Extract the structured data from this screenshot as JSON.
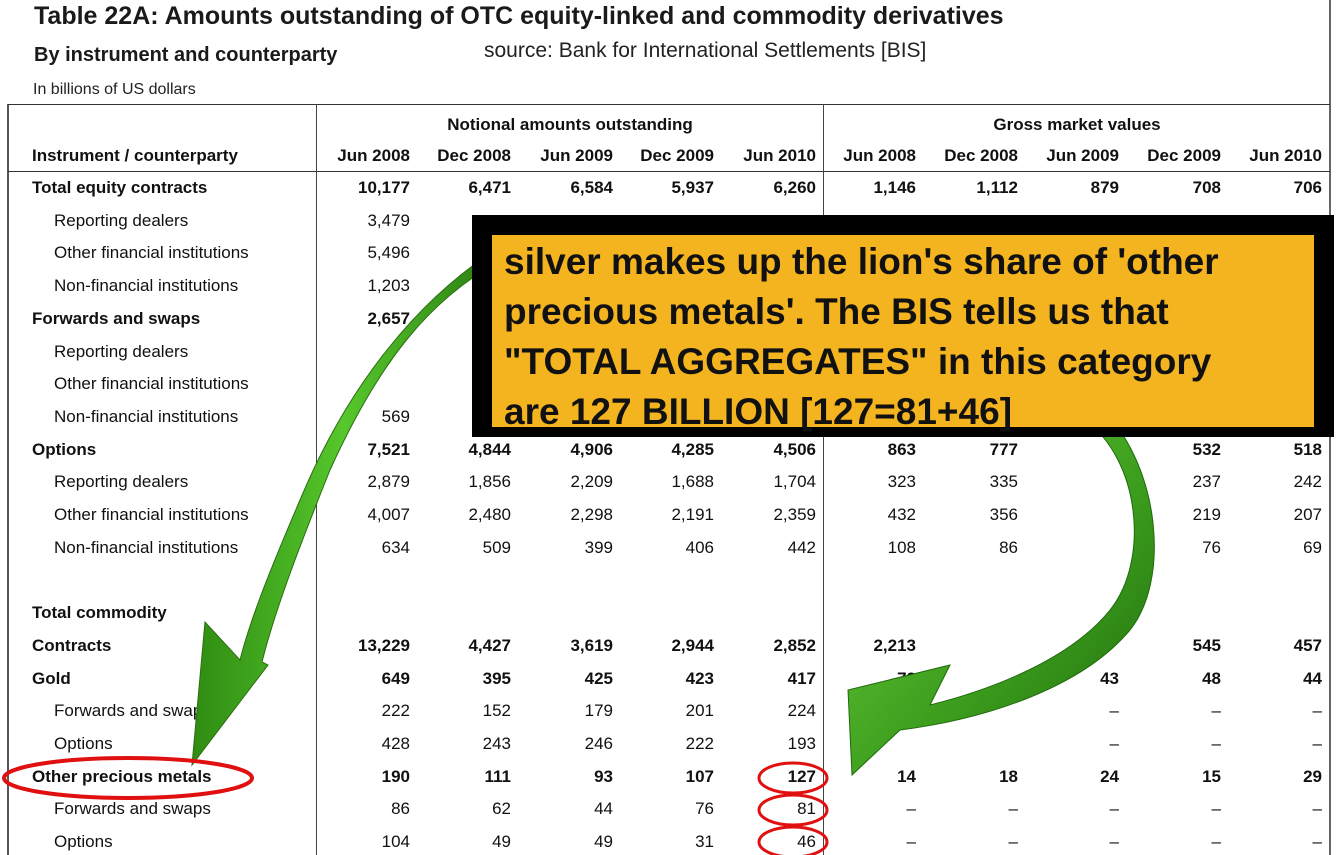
{
  "header": {
    "title": "Table 22A: Amounts outstanding of OTC equity-linked and commodity derivatives",
    "subtitle": "By instrument and counterparty",
    "source": "source:  Bank for International Settlements [BIS]",
    "units": "In billions of US dollars"
  },
  "table": {
    "label_header": "Instrument / counterparty",
    "group_notional": "Notional amounts outstanding",
    "group_gross": "Gross market values",
    "columns": [
      "Jun 2008",
      "Dec 2008",
      "Jun 2009",
      "Dec 2009",
      "Jun 2010",
      "Jun 2008",
      "Dec 2008",
      "Jun 2009",
      "Dec 2009",
      "Jun 2010"
    ],
    "rows": [
      {
        "label": "Total equity contracts",
        "style": "bold",
        "values": [
          "10,177",
          "6,471",
          "6,584",
          "5,937",
          "6,260",
          "1,146",
          "1,112",
          "879",
          "708",
          "706"
        ]
      },
      {
        "label": "Reporting dealers",
        "style": "indent",
        "values": [
          "3,479",
          "",
          "",
          "",
          "",
          "",
          "",
          "",
          "",
          ""
        ]
      },
      {
        "label": "Other financial institutions",
        "style": "indent",
        "values": [
          "5,496",
          "",
          "",
          "",
          "",
          "",
          "",
          "",
          "",
          ""
        ]
      },
      {
        "label": "Non-financial institutions",
        "style": "indent",
        "values": [
          "1,203",
          "",
          "",
          "",
          "",
          "",
          "",
          "",
          "",
          ""
        ]
      },
      {
        "label": "Forwards and swaps",
        "style": "bold",
        "values": [
          "2,657",
          "",
          "",
          "",
          "",
          "",
          "",
          "",
          "",
          ""
        ]
      },
      {
        "label": "Reporting dealers",
        "style": "indent",
        "values": [
          "",
          "",
          "",
          "",
          "",
          "",
          "",
          "",
          "",
          ""
        ]
      },
      {
        "label": "Other financial institutions",
        "style": "indent",
        "values": [
          "",
          "",
          "",
          "",
          "",
          "",
          "",
          "",
          "",
          ""
        ]
      },
      {
        "label": "Non-financial institutions",
        "style": "indent",
        "values": [
          "569",
          "",
          "",
          "",
          "",
          "",
          "",
          "",
          "",
          ""
        ]
      },
      {
        "label": "Options",
        "style": "bold",
        "values": [
          "7,521",
          "4,844",
          "4,906",
          "4,285",
          "4,506",
          "863",
          "777",
          "",
          "532",
          "518"
        ]
      },
      {
        "label": "Reporting dealers",
        "style": "indent",
        "values": [
          "2,879",
          "1,856",
          "2,209",
          "1,688",
          "1,704",
          "323",
          "335",
          "",
          "237",
          "242"
        ]
      },
      {
        "label": "Other financial institutions",
        "style": "indent",
        "values": [
          "4,007",
          "2,480",
          "2,298",
          "2,191",
          "2,359",
          "432",
          "356",
          "",
          "219",
          "207"
        ]
      },
      {
        "label": "Non-financial institutions",
        "style": "indent",
        "values": [
          "634",
          "509",
          "399",
          "406",
          "442",
          "108",
          "86",
          "",
          "76",
          "69"
        ]
      },
      {
        "label": "",
        "style": "blank",
        "values": [
          "",
          "",
          "",
          "",
          "",
          "",
          "",
          "",
          "",
          ""
        ]
      },
      {
        "label": "Total commodity",
        "style": "bold",
        "values": [
          "",
          "",
          "",
          "",
          "",
          "",
          "",
          "",
          "",
          ""
        ]
      },
      {
        "label": "Contracts",
        "style": "bold",
        "values": [
          "13,229",
          "4,427",
          "3,619",
          "2,944",
          "2,852",
          "2,213",
          "",
          "",
          "545",
          "457"
        ]
      },
      {
        "label": "Gold",
        "style": "bold",
        "values": [
          "649",
          "395",
          "425",
          "423",
          "417",
          "72",
          "",
          "43",
          "48",
          "44"
        ]
      },
      {
        "label": "Forwards and swaps",
        "style": "indent",
        "values": [
          "222",
          "152",
          "179",
          "201",
          "224",
          "",
          "",
          "–",
          "–",
          "–"
        ]
      },
      {
        "label": "Options",
        "style": "indent",
        "values": [
          "428",
          "243",
          "246",
          "222",
          "193",
          "",
          "",
          "–",
          "–",
          "–"
        ]
      },
      {
        "label": "Other precious metals",
        "style": "bold",
        "values": [
          "190",
          "111",
          "93",
          "107",
          "127",
          "14",
          "18",
          "24",
          "15",
          "29"
        ]
      },
      {
        "label": "Forwards and swaps",
        "style": "indent",
        "values": [
          "86",
          "62",
          "44",
          "76",
          "81",
          "–",
          "–",
          "–",
          "–",
          "–"
        ]
      },
      {
        "label": "Options",
        "style": "indent",
        "values": [
          "104",
          "49",
          "49",
          "31",
          "46",
          "–",
          "–",
          "–",
          "–",
          "–"
        ]
      }
    ]
  },
  "callout": {
    "lines": [
      "silver makes up the lion's share of 'other",
      "precious metals'.  The BIS tells us that",
      "\"TOTAL AGGREGATES\" in this category",
      "are 127  BILLION [127=81+46]"
    ]
  },
  "colors": {
    "callout_bg": "#f4b420",
    "callout_border": "#000000",
    "arrow_green": "#3fae1f",
    "highlight_red": "#e01010"
  }
}
